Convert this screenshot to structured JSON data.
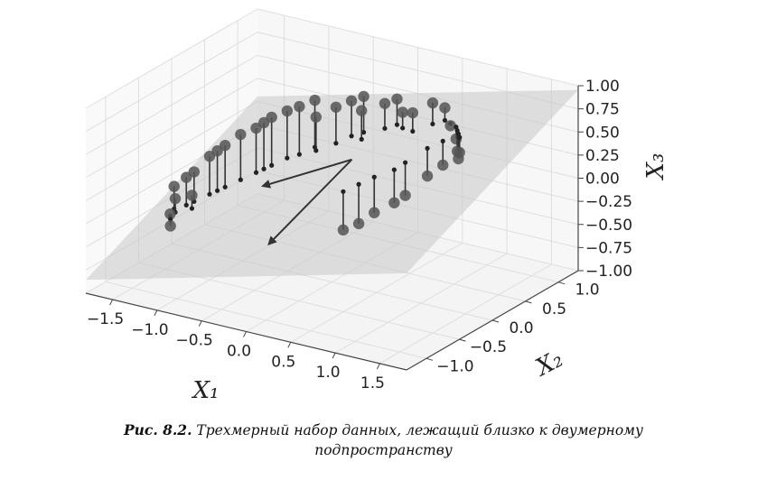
{
  "caption": {
    "label": "Рис. 8.2.",
    "line1": "Трехмерный набор данных, лежащий близко к двумерному",
    "line2": "подпространству"
  },
  "chart_data": {
    "type": "scatter",
    "projection": "3d",
    "grid": true,
    "axes": {
      "x": {
        "label": "X₁",
        "ticks": [
          "−1.5",
          "−1.0",
          "−0.5",
          "0.0",
          "0.5",
          "1.0",
          "1.5"
        ],
        "range": [
          -1.8,
          1.8
        ]
      },
      "y": {
        "label": "X₂",
        "ticks": [
          "−1.0",
          "−0.5",
          "0.0",
          "0.5",
          "1.0"
        ],
        "range": [
          -1.3,
          1.3
        ]
      },
      "z": {
        "label": "X₃",
        "ticks": [
          "−1.00",
          "−0.75",
          "−0.50",
          "−0.25",
          "0.00",
          "0.25",
          "0.50",
          "0.75",
          "1.00"
        ],
        "range": [
          -1.0,
          1.0
        ]
      }
    },
    "plane_color": "#c8c8c8",
    "point_color": "#555555",
    "points": [
      [
        -1.55,
        -0.3,
        -0.2
      ],
      [
        -1.5,
        -0.35,
        -0.3
      ],
      [
        -1.45,
        -0.25,
        -0.1
      ],
      [
        -1.52,
        -0.4,
        -0.45
      ],
      [
        -1.4,
        -0.2,
        -0.05
      ],
      [
        -1.35,
        -0.3,
        -0.25
      ],
      [
        -1.48,
        -0.45,
        -0.55
      ],
      [
        -1.3,
        -0.1,
        0.1
      ],
      [
        -1.2,
        0.0,
        0.2
      ],
      [
        -1.1,
        0.1,
        0.3
      ],
      [
        -1.25,
        -0.05,
        0.15
      ],
      [
        -1.0,
        0.2,
        0.35
      ],
      [
        -0.9,
        0.3,
        0.45
      ],
      [
        -0.8,
        0.4,
        0.5
      ],
      [
        -0.95,
        0.25,
        0.4
      ],
      [
        -0.7,
        0.45,
        0.55
      ],
      [
        -0.6,
        0.55,
        0.6
      ],
      [
        -0.55,
        0.5,
        0.45
      ],
      [
        -0.4,
        0.6,
        0.55
      ],
      [
        -0.3,
        0.7,
        0.6
      ],
      [
        -0.2,
        0.75,
        0.65
      ],
      [
        0.0,
        0.8,
        0.6
      ],
      [
        0.1,
        0.85,
        0.65
      ],
      [
        0.2,
        0.8,
        0.55
      ],
      [
        0.35,
        0.75,
        0.6
      ],
      [
        0.5,
        0.85,
        0.7
      ],
      [
        0.6,
        0.9,
        0.65
      ],
      [
        0.7,
        0.85,
        0.5
      ],
      [
        0.8,
        0.8,
        0.4
      ],
      [
        0.85,
        0.75,
        0.3
      ],
      [
        0.9,
        0.7,
        0.25
      ],
      [
        0.8,
        0.6,
        0.2
      ],
      [
        0.7,
        0.5,
        0.1
      ],
      [
        0.95,
        0.65,
        0.35
      ],
      [
        0.6,
        0.3,
        -0.05
      ],
      [
        0.4,
        0.1,
        -0.2
      ],
      [
        0.3,
        0.0,
        -0.3
      ],
      [
        0.2,
        -0.1,
        -0.35
      ],
      [
        0.55,
        0.2,
        -0.1
      ],
      [
        -0.15,
        0.65,
        0.55
      ]
    ],
    "arrows": [
      {
        "from": [
          0.0,
          0.3,
          0.2
        ],
        "to": [
          -0.85,
          0.1,
          -0.2
        ]
      },
      {
        "from": [
          0.0,
          0.3,
          0.2
        ],
        "to": [
          -0.45,
          -0.35,
          -0.55
        ]
      }
    ]
  }
}
